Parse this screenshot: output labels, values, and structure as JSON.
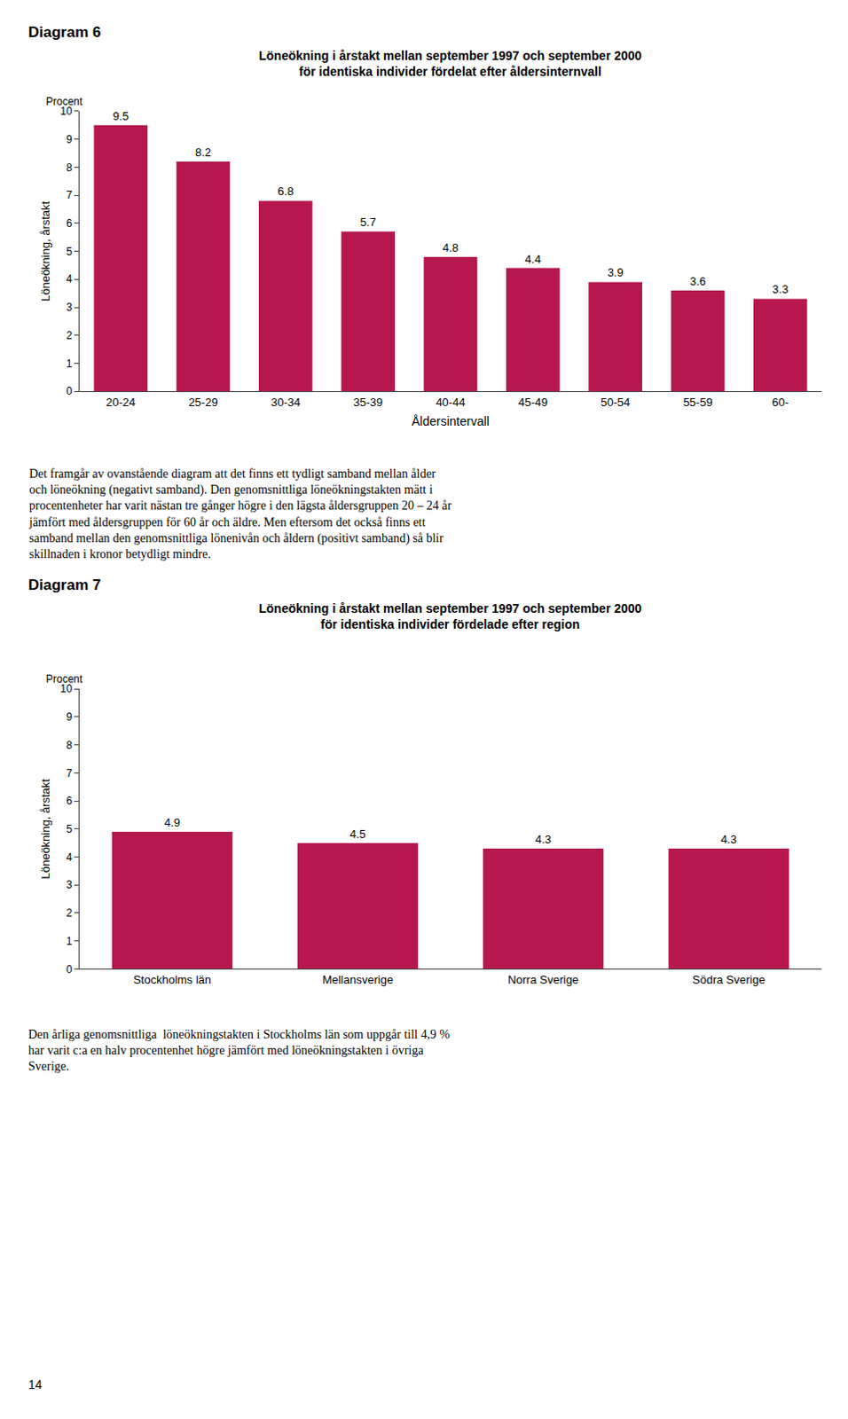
{
  "chart_data": [
    {
      "type": "bar",
      "title": "Löneökning i årstakt mellan september 1997 och september 2000\nför identiska individer fördelat efter åldersinternvall",
      "xlabel": "Åldersintervall",
      "ylabel": "Löneökning, årstakt",
      "annotations": [
        "Diagram 6",
        "Procent",
        "Det framgår av ovanstående diagram att det finns ett tydligt samband mellan ålder\noch löneökning (negativt samband). Den genomsnittliga löneökningstakten mätt i\nprocentenheter har varit nästan tre gånger högre i den lägsta åldersgruppen 20 – 24 år\njämfört med åldersgruppen för 60 år och äldre. Men eftersom det också finns ett\nsamband mellan den genomsnittliga lönenivån och åldern (positivt samband) så blir\nskillnaden i kronor betydligt mindre."
      ],
      "categories": [
        "20-24",
        "25-29",
        "30-34",
        "35-39",
        "40-44",
        "45-49",
        "50-54",
        "55-59",
        "60-"
      ],
      "values": [
        9.5,
        8.2,
        6.8,
        5.7,
        4.8,
        4.4,
        3.9,
        3.6,
        3.3
      ],
      "color": "#b5174e",
      "ylim": [
        0,
        10
      ],
      "yticks": [
        0,
        1,
        2,
        3,
        4,
        5,
        6,
        7,
        8,
        9,
        10
      ],
      "grid": false,
      "data_labels": true
    },
    {
      "type": "bar",
      "title": "Löneökning i årstakt mellan september 1997 och september 2000\nför identiska individer fördelade efter region",
      "ylabel": "Löneökning, årstakt",
      "annotations": [
        "Diagram 7",
        "Procent",
        "Den årliga genomsnittliga  löneökningstakten i Stockholms län som uppgår till 4,9 %\nhar varit c:a en halv procentenhet högre jämfört med löneökningstakten i övriga\nSverige.",
        "14"
      ],
      "categories": [
        "Stockholms län",
        "Mellansverige",
        "Norra Sverige",
        "Södra Sverige"
      ],
      "values": [
        4.9,
        4.5,
        4.3,
        4.3
      ],
      "color": "#b5174e",
      "ylim": [
        0,
        10
      ],
      "yticks": [
        0,
        1,
        2,
        3,
        4,
        5,
        6,
        7,
        8,
        9,
        10
      ],
      "grid": false,
      "data_labels": true
    }
  ]
}
